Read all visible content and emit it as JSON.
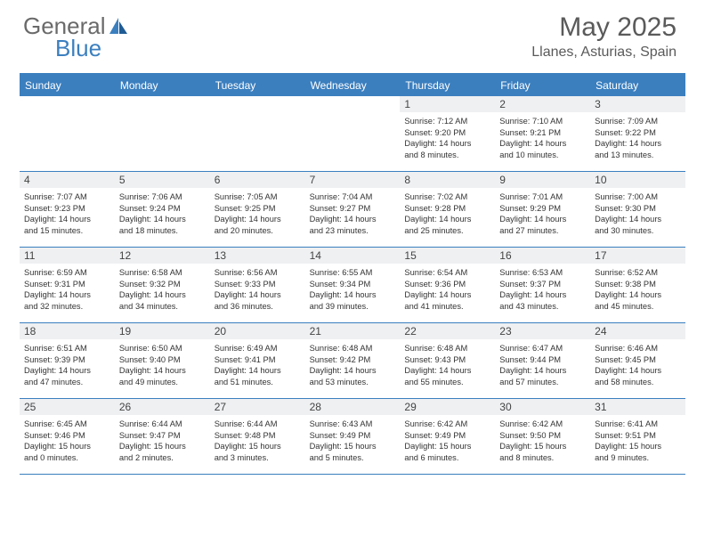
{
  "brand": {
    "part1": "General",
    "part2": "Blue"
  },
  "title": "May 2025",
  "location": "Llanes, Asturias, Spain",
  "colors": {
    "accent": "#3b7fbf",
    "daybar": "#eef0f2",
    "text": "#333333",
    "header_text": "#5a5a5a",
    "bg": "#ffffff"
  },
  "daynames": [
    "Sunday",
    "Monday",
    "Tuesday",
    "Wednesday",
    "Thursday",
    "Friday",
    "Saturday"
  ],
  "weeks": [
    [
      null,
      null,
      null,
      null,
      {
        "n": "1",
        "sunrise": "7:12 AM",
        "sunset": "9:20 PM",
        "day_h": "14",
        "day_m": "8"
      },
      {
        "n": "2",
        "sunrise": "7:10 AM",
        "sunset": "9:21 PM",
        "day_h": "14",
        "day_m": "10"
      },
      {
        "n": "3",
        "sunrise": "7:09 AM",
        "sunset": "9:22 PM",
        "day_h": "14",
        "day_m": "13"
      }
    ],
    [
      {
        "n": "4",
        "sunrise": "7:07 AM",
        "sunset": "9:23 PM",
        "day_h": "14",
        "day_m": "15"
      },
      {
        "n": "5",
        "sunrise": "7:06 AM",
        "sunset": "9:24 PM",
        "day_h": "14",
        "day_m": "18"
      },
      {
        "n": "6",
        "sunrise": "7:05 AM",
        "sunset": "9:25 PM",
        "day_h": "14",
        "day_m": "20"
      },
      {
        "n": "7",
        "sunrise": "7:04 AM",
        "sunset": "9:27 PM",
        "day_h": "14",
        "day_m": "23"
      },
      {
        "n": "8",
        "sunrise": "7:02 AM",
        "sunset": "9:28 PM",
        "day_h": "14",
        "day_m": "25"
      },
      {
        "n": "9",
        "sunrise": "7:01 AM",
        "sunset": "9:29 PM",
        "day_h": "14",
        "day_m": "27"
      },
      {
        "n": "10",
        "sunrise": "7:00 AM",
        "sunset": "9:30 PM",
        "day_h": "14",
        "day_m": "30"
      }
    ],
    [
      {
        "n": "11",
        "sunrise": "6:59 AM",
        "sunset": "9:31 PM",
        "day_h": "14",
        "day_m": "32"
      },
      {
        "n": "12",
        "sunrise": "6:58 AM",
        "sunset": "9:32 PM",
        "day_h": "14",
        "day_m": "34"
      },
      {
        "n": "13",
        "sunrise": "6:56 AM",
        "sunset": "9:33 PM",
        "day_h": "14",
        "day_m": "36"
      },
      {
        "n": "14",
        "sunrise": "6:55 AM",
        "sunset": "9:34 PM",
        "day_h": "14",
        "day_m": "39"
      },
      {
        "n": "15",
        "sunrise": "6:54 AM",
        "sunset": "9:36 PM",
        "day_h": "14",
        "day_m": "41"
      },
      {
        "n": "16",
        "sunrise": "6:53 AM",
        "sunset": "9:37 PM",
        "day_h": "14",
        "day_m": "43"
      },
      {
        "n": "17",
        "sunrise": "6:52 AM",
        "sunset": "9:38 PM",
        "day_h": "14",
        "day_m": "45"
      }
    ],
    [
      {
        "n": "18",
        "sunrise": "6:51 AM",
        "sunset": "9:39 PM",
        "day_h": "14",
        "day_m": "47"
      },
      {
        "n": "19",
        "sunrise": "6:50 AM",
        "sunset": "9:40 PM",
        "day_h": "14",
        "day_m": "49"
      },
      {
        "n": "20",
        "sunrise": "6:49 AM",
        "sunset": "9:41 PM",
        "day_h": "14",
        "day_m": "51"
      },
      {
        "n": "21",
        "sunrise": "6:48 AM",
        "sunset": "9:42 PM",
        "day_h": "14",
        "day_m": "53"
      },
      {
        "n": "22",
        "sunrise": "6:48 AM",
        "sunset": "9:43 PM",
        "day_h": "14",
        "day_m": "55"
      },
      {
        "n": "23",
        "sunrise": "6:47 AM",
        "sunset": "9:44 PM",
        "day_h": "14",
        "day_m": "57"
      },
      {
        "n": "24",
        "sunrise": "6:46 AM",
        "sunset": "9:45 PM",
        "day_h": "14",
        "day_m": "58"
      }
    ],
    [
      {
        "n": "25",
        "sunrise": "6:45 AM",
        "sunset": "9:46 PM",
        "day_h": "15",
        "day_m": "0"
      },
      {
        "n": "26",
        "sunrise": "6:44 AM",
        "sunset": "9:47 PM",
        "day_h": "15",
        "day_m": "2"
      },
      {
        "n": "27",
        "sunrise": "6:44 AM",
        "sunset": "9:48 PM",
        "day_h": "15",
        "day_m": "3"
      },
      {
        "n": "28",
        "sunrise": "6:43 AM",
        "sunset": "9:49 PM",
        "day_h": "15",
        "day_m": "5"
      },
      {
        "n": "29",
        "sunrise": "6:42 AM",
        "sunset": "9:49 PM",
        "day_h": "15",
        "day_m": "6"
      },
      {
        "n": "30",
        "sunrise": "6:42 AM",
        "sunset": "9:50 PM",
        "day_h": "15",
        "day_m": "8"
      },
      {
        "n": "31",
        "sunrise": "6:41 AM",
        "sunset": "9:51 PM",
        "day_h": "15",
        "day_m": "9"
      }
    ]
  ],
  "labels": {
    "sunrise": "Sunrise:",
    "sunset": "Sunset:",
    "daylight_prefix": "Daylight:",
    "hours_word": "hours",
    "and_word": "and",
    "minutes_word": "minutes."
  }
}
